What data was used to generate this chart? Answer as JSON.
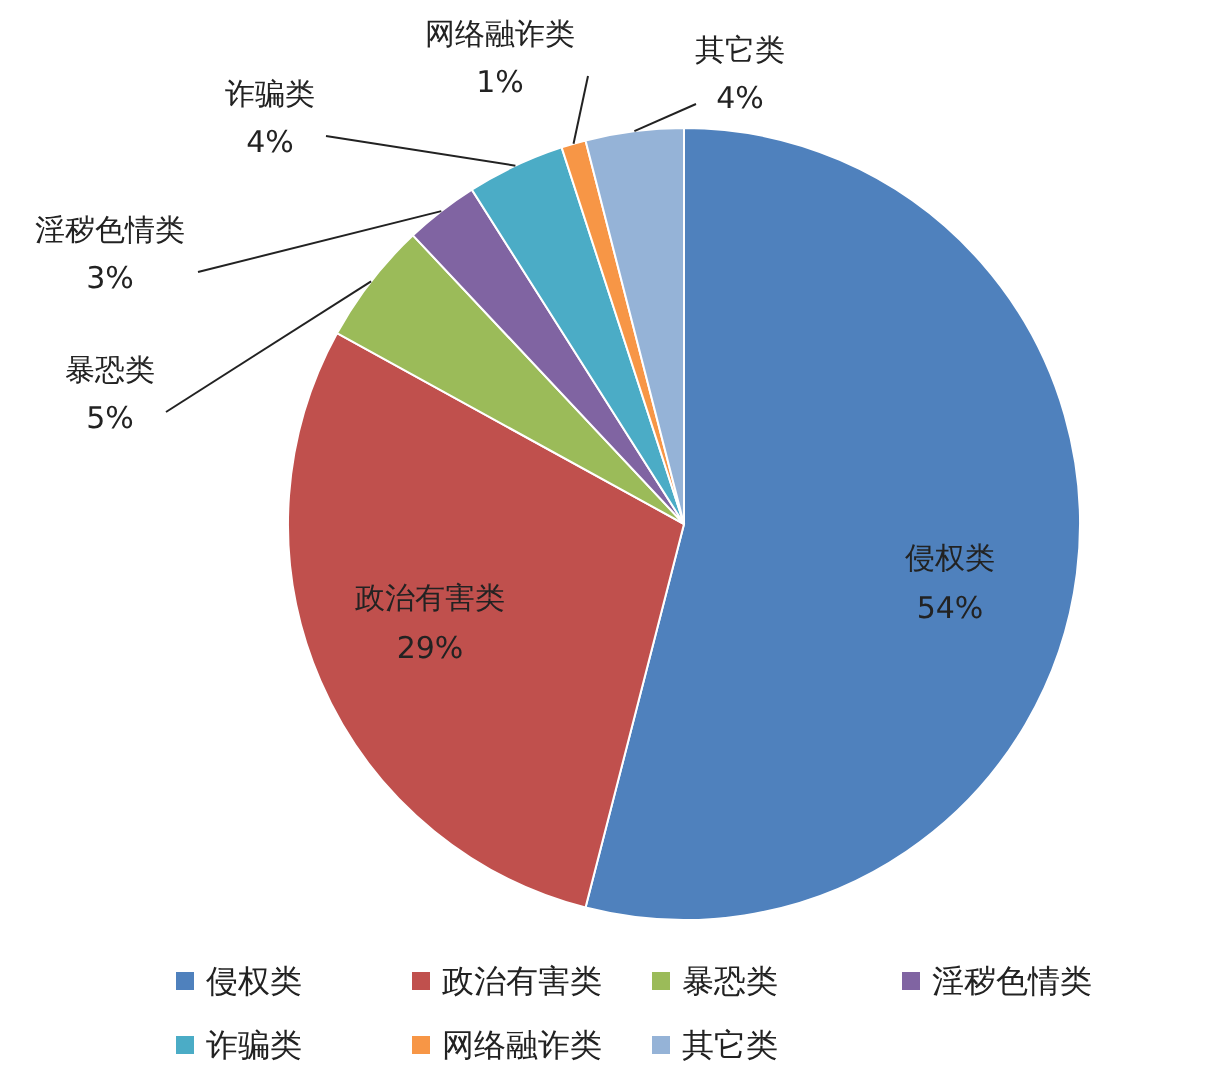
{
  "chart_data": {
    "type": "pie",
    "categories": [
      "侵权类",
      "政治有害类",
      "暴恐类",
      "淫秽色情类",
      "诈骗类",
      "网络融诈类",
      "其它类"
    ],
    "values": [
      54,
      29,
      5,
      3,
      4,
      1,
      4
    ],
    "value_labels": [
      "54%",
      "29%",
      "5%",
      "3%",
      "4%",
      "1%",
      "4%"
    ],
    "colors": [
      "#4f81bd",
      "#c0504d",
      "#9bbb59",
      "#8064a2",
      "#4bacc6",
      "#f79646",
      "#95b3d7"
    ],
    "legend": "bottom"
  }
}
